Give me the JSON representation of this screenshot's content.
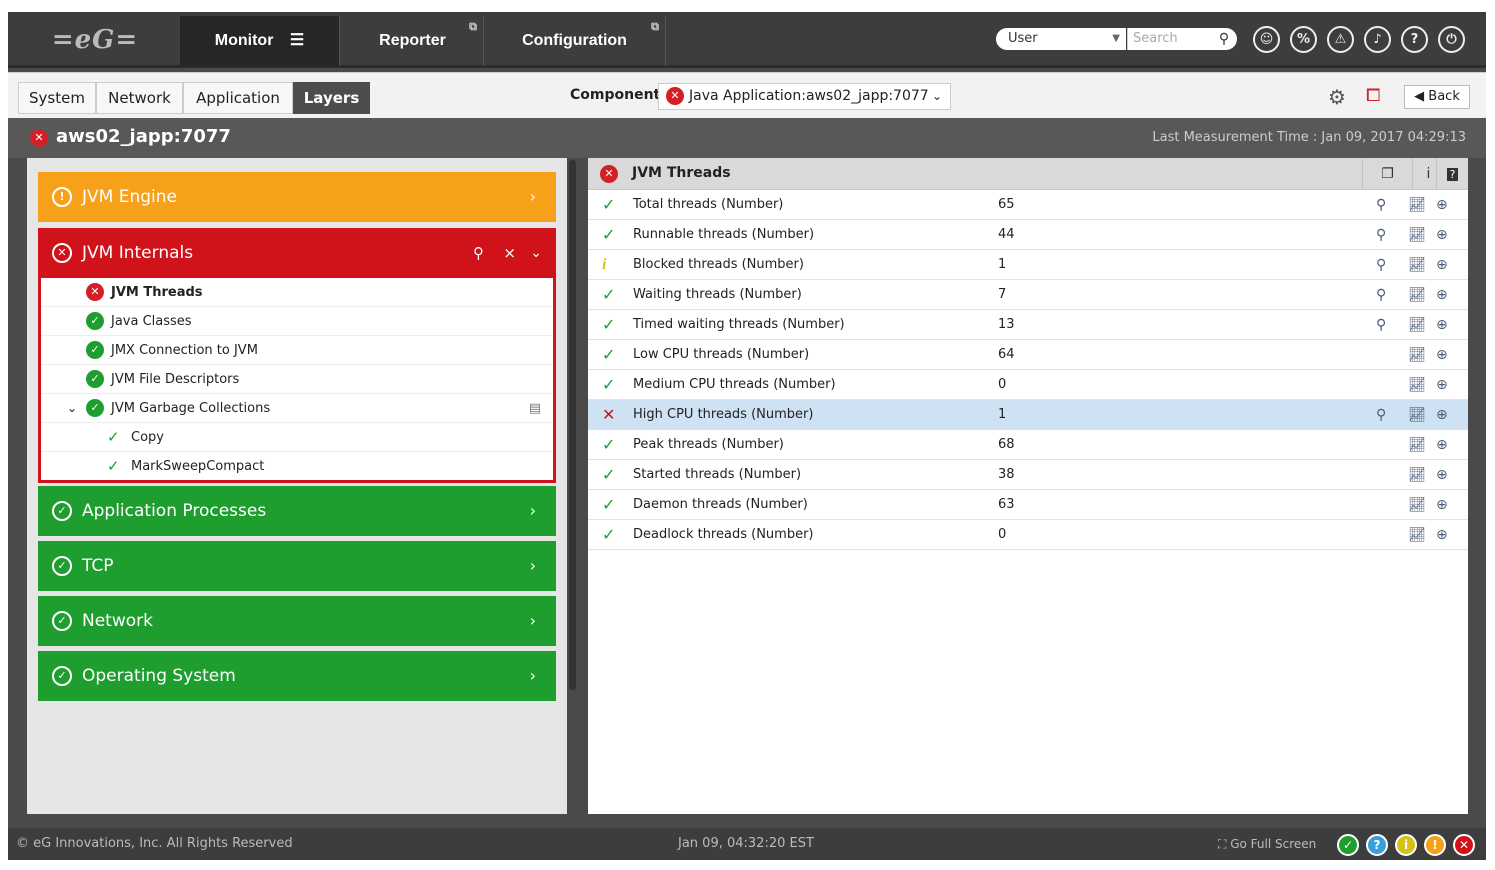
{
  "topbar": {
    "logo": "eG",
    "nav": [
      {
        "label": "Monitor",
        "menu_icon": "hamburger-icon"
      },
      {
        "label": "Reporter",
        "external": true
      },
      {
        "label": "Configuration",
        "external": true
      }
    ],
    "user_select": "User",
    "search_placeholder": "Search",
    "icons": [
      "user-icon",
      "link-icon",
      "alert-icon",
      "bell-icon",
      "help-icon",
      "power-icon"
    ]
  },
  "tabs": [
    {
      "label": "System"
    },
    {
      "label": "Network"
    },
    {
      "label": "Application"
    },
    {
      "label": "Layers",
      "active": true
    }
  ],
  "component": {
    "label": "Component",
    "value": "Java Application:aws02_japp:7077"
  },
  "back_label": "Back",
  "title": {
    "name": "aws02_japp:7077",
    "last_measurement": "Last Measurement Time : Jan 09, 2017 04:29:13"
  },
  "layers": {
    "jvm_engine": {
      "label": "JVM Engine",
      "status": "major"
    },
    "jvm_internals": {
      "label": "JVM Internals",
      "status": "critical",
      "items": [
        {
          "label": "JVM Threads",
          "status": "critical"
        },
        {
          "label": "Java Classes",
          "status": "ok"
        },
        {
          "label": "JMX Connection to JVM",
          "status": "ok"
        },
        {
          "label": "JVM File Descriptors",
          "status": "ok"
        },
        {
          "label": "JVM Garbage Collections",
          "status": "ok",
          "expanded": true
        },
        {
          "label": "Copy",
          "status": "ok",
          "child": true
        },
        {
          "label": "MarkSweepCompact",
          "status": "ok",
          "child": true
        }
      ]
    },
    "others": [
      {
        "label": "Application Processes"
      },
      {
        "label": "TCP"
      },
      {
        "label": "Network"
      },
      {
        "label": "Operating System"
      }
    ]
  },
  "test": {
    "title": "JVM Threads",
    "rows": [
      {
        "name": "Total threads (Number)",
        "value": "65",
        "status": "ok",
        "detail": true
      },
      {
        "name": "Runnable threads (Number)",
        "value": "44",
        "status": "ok",
        "detail": true
      },
      {
        "name": "Blocked threads (Number)",
        "value": "1",
        "status": "info",
        "detail": true
      },
      {
        "name": "Waiting threads (Number)",
        "value": "7",
        "status": "ok",
        "detail": true
      },
      {
        "name": "Timed waiting threads (Number)",
        "value": "13",
        "status": "ok",
        "detail": true
      },
      {
        "name": "Low CPU threads (Number)",
        "value": "64",
        "status": "ok",
        "detail": false
      },
      {
        "name": "Medium CPU threads (Number)",
        "value": "0",
        "status": "ok",
        "detail": false
      },
      {
        "name": "High CPU threads (Number)",
        "value": "1",
        "status": "critical",
        "detail": true,
        "selected": true
      },
      {
        "name": "Peak threads (Number)",
        "value": "68",
        "status": "ok",
        "detail": false
      },
      {
        "name": "Started threads (Number)",
        "value": "38",
        "status": "ok",
        "detail": false
      },
      {
        "name": "Daemon threads (Number)",
        "value": "63",
        "status": "ok",
        "detail": false
      },
      {
        "name": "Deadlock threads (Number)",
        "value": "0",
        "status": "ok",
        "detail": false
      }
    ]
  },
  "footer": {
    "copyright": "© eG Innovations, Inc. All Rights Reserved",
    "time": "Jan 09, 04:32:20 EST",
    "fullscreen": "Go Full Screen"
  },
  "colors": {
    "ok": "#1e9e2f",
    "critical": "#d0121b",
    "major": "#f7a11a",
    "info": "#d4c21a",
    "unknown": "#3a9fd8"
  }
}
